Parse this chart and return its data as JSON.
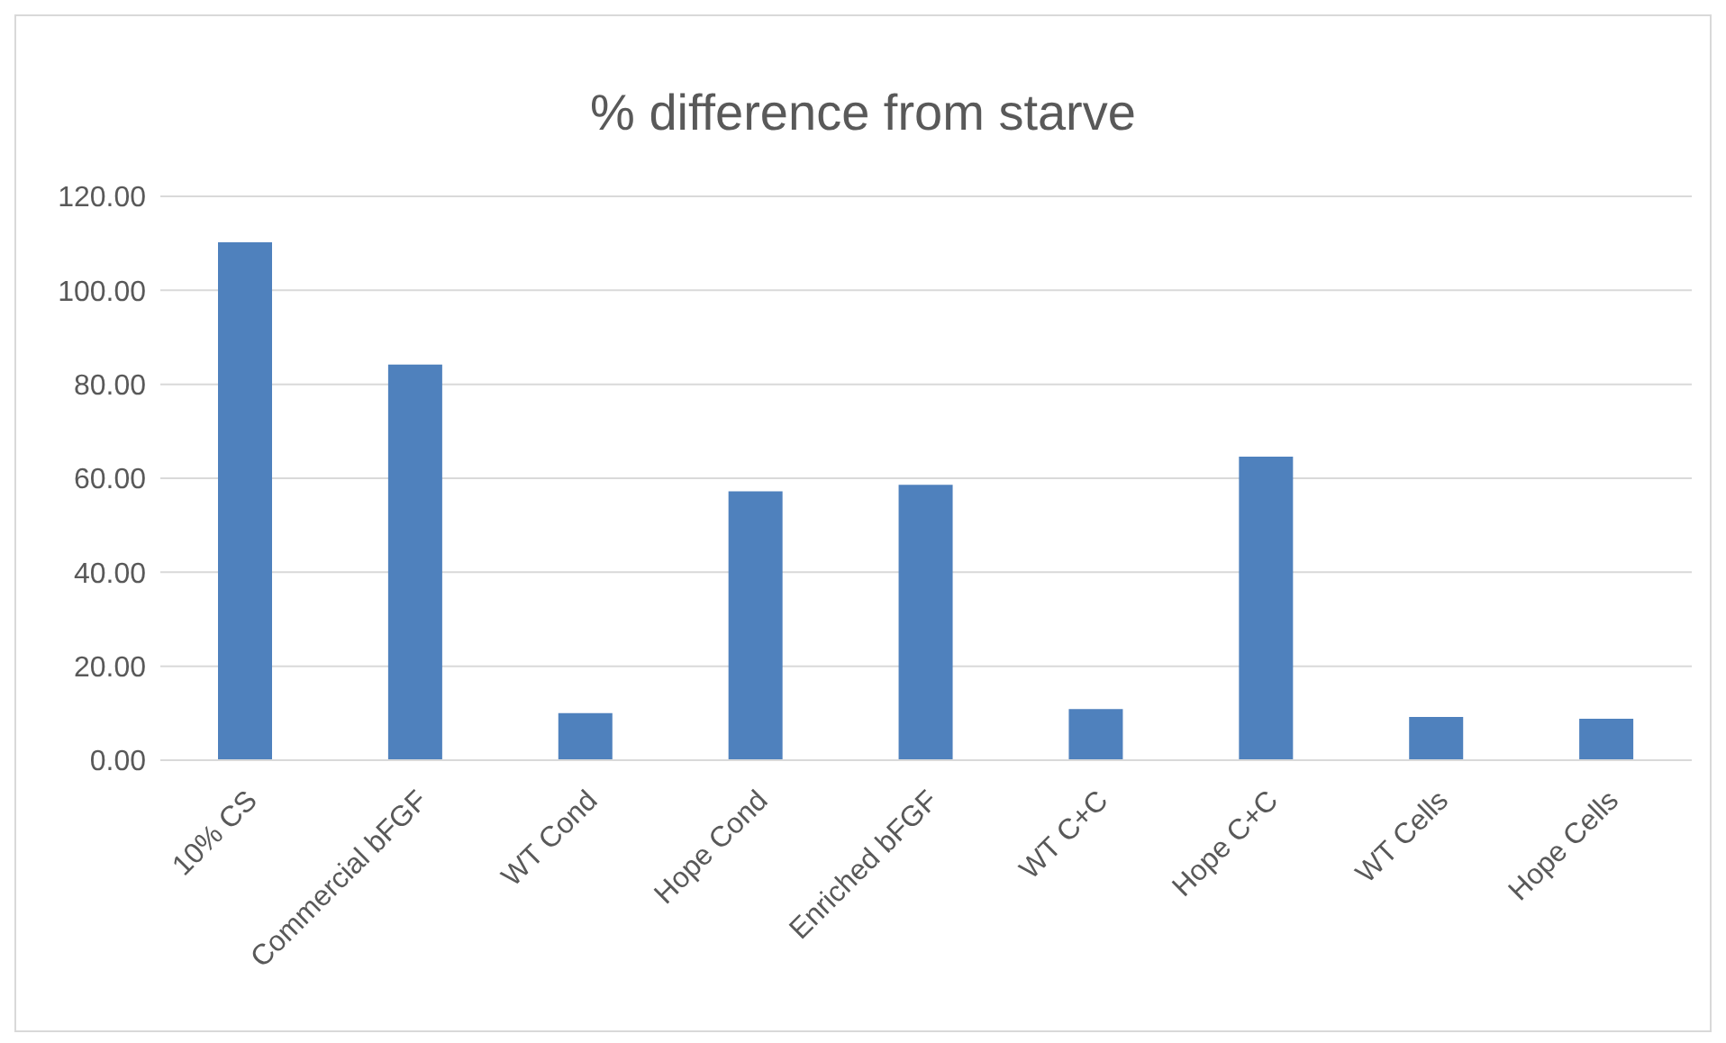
{
  "chart_data": {
    "type": "bar",
    "title": "% difference from starve",
    "categories": [
      "10% CS",
      "Commercial bFGF",
      "WT Cond",
      "Hope Cond",
      "Enriched bFGF",
      "WT C+C",
      "Hope C+C",
      "WT Cells",
      "Hope Cells"
    ],
    "values": [
      110.2,
      84.2,
      10.0,
      57.2,
      58.6,
      10.9,
      64.6,
      9.2,
      8.8
    ],
    "color": "#4f81bd",
    "ylim": [
      0,
      120
    ],
    "yticks": [
      {
        "value": 0,
        "label": "0.00"
      },
      {
        "value": 20,
        "label": "20.00"
      },
      {
        "value": 40,
        "label": "40.00"
      },
      {
        "value": 60,
        "label": "60.00"
      },
      {
        "value": 80,
        "label": "80.00"
      },
      {
        "value": 100,
        "label": "100.00"
      },
      {
        "value": 120,
        "label": "120.00"
      }
    ],
    "grid": "y"
  }
}
